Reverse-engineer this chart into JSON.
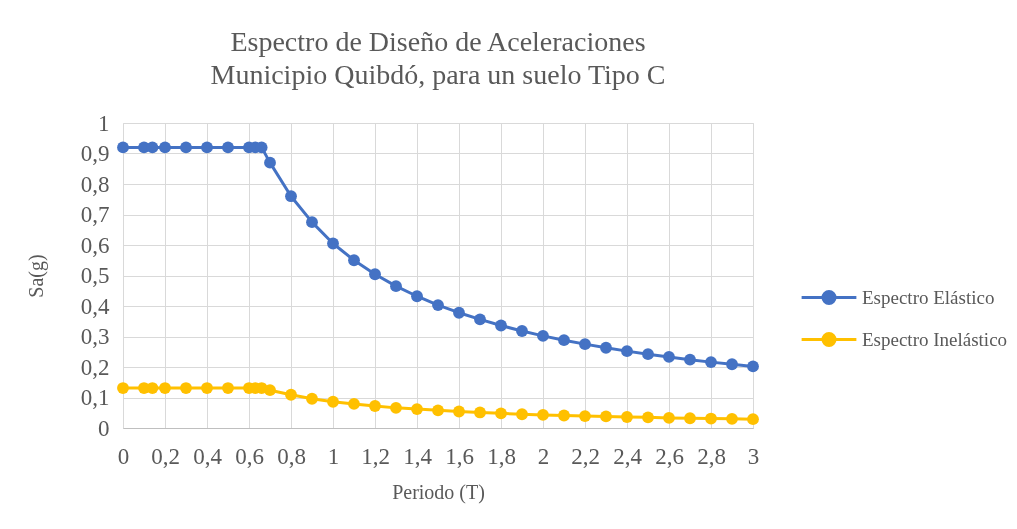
{
  "chart_data": {
    "type": "line",
    "title": "Espectro de Diseño de Aceleraciones\nMunicipio Quibdó, para un suelo Tipo C",
    "xlabel": "Periodo (T)",
    "ylabel": "Sa(g)",
    "x": [
      0,
      0.1,
      0.14,
      0.2,
      0.3,
      0.4,
      0.5,
      0.6,
      0.63,
      0.66,
      0.7,
      0.8,
      0.9,
      1,
      1.1,
      1.2,
      1.3,
      1.4,
      1.5,
      1.6,
      1.7,
      1.8,
      1.9,
      2,
      2.1,
      2.2,
      2.3,
      2.4,
      2.5,
      2.6,
      2.7,
      2.8,
      2.9,
      3
    ],
    "series": [
      {
        "name": "Espectro Elástico",
        "color": "#4472c4",
        "values": [
          0.92,
          0.92,
          0.92,
          0.92,
          0.92,
          0.92,
          0.92,
          0.92,
          0.92,
          0.92,
          0.87,
          0.76,
          0.675,
          0.605,
          0.55,
          0.504,
          0.465,
          0.432,
          0.403,
          0.378,
          0.356,
          0.336,
          0.318,
          0.302,
          0.288,
          0.275,
          0.263,
          0.252,
          0.242,
          0.233,
          0.224,
          0.216,
          0.209,
          0.202
        ]
      },
      {
        "name": "Espectro Inelástico",
        "color": "#ffc000",
        "values": [
          0.131,
          0.131,
          0.131,
          0.131,
          0.131,
          0.131,
          0.131,
          0.131,
          0.131,
          0.131,
          0.124,
          0.109,
          0.096,
          0.086,
          0.079,
          0.072,
          0.066,
          0.062,
          0.058,
          0.054,
          0.051,
          0.048,
          0.045,
          0.043,
          0.041,
          0.039,
          0.038,
          0.036,
          0.035,
          0.033,
          0.032,
          0.031,
          0.03,
          0.029
        ]
      }
    ],
    "xlim": [
      0,
      3
    ],
    "ylim": [
      0,
      1
    ],
    "xticks": [
      0,
      {
        "value": 0.2,
        "label": "0,2"
      },
      {
        "value": 0.4,
        "label": "0,4"
      },
      {
        "value": 0.6,
        "label": "0,6"
      },
      {
        "value": 0.8,
        "label": "0,8"
      },
      1,
      {
        "value": 1.2,
        "label": "1,2"
      },
      {
        "value": 1.4,
        "label": "1,4"
      },
      {
        "value": 1.6,
        "label": "1,6"
      },
      {
        "value": 1.8,
        "label": "1,8"
      },
      2,
      {
        "value": 2.2,
        "label": "2,2"
      },
      {
        "value": 2.4,
        "label": "2,4"
      },
      {
        "value": 2.6,
        "label": "2,6"
      },
      {
        "value": 2.8,
        "label": "2,8"
      },
      3
    ],
    "yticks": [
      0,
      {
        "value": 0.1,
        "label": "0,1"
      },
      {
        "value": 0.2,
        "label": "0,2"
      },
      {
        "value": 0.3,
        "label": "0,3"
      },
      {
        "value": 0.4,
        "label": "0,4"
      },
      {
        "value": 0.5,
        "label": "0,5"
      },
      {
        "value": 0.6,
        "label": "0,6"
      },
      {
        "value": 0.7,
        "label": "0,7"
      },
      {
        "value": 0.8,
        "label": "0,8"
      },
      {
        "value": 0.9,
        "label": "0,9"
      },
      1
    ],
    "grid": true,
    "legend": "right",
    "marker": "circle",
    "line_style": "solid"
  }
}
